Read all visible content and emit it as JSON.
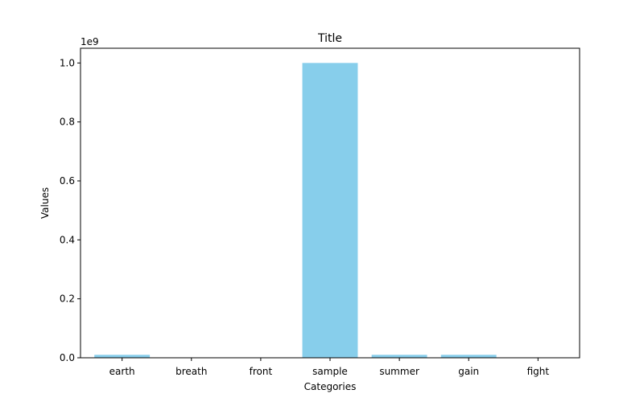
{
  "chart_data": {
    "type": "bar",
    "title": "Title",
    "xlabel": "Categories",
    "ylabel": "Values",
    "categories": [
      "earth",
      "breath",
      "front",
      "sample",
      "summer",
      "gain",
      "fight"
    ],
    "values": [
      10000000,
      0,
      0,
      1000000000,
      10000000,
      10000000,
      0
    ],
    "ylim": [
      0,
      1050000000.0
    ],
    "ytick_values": [
      0,
      200000000.0,
      400000000.0,
      600000000.0,
      800000000.0,
      1000000000.0
    ],
    "ytick_labels": [
      "0.0",
      "0.2",
      "0.4",
      "0.6",
      "0.8",
      "1.0"
    ],
    "offset_label": "1e9",
    "bar_color": "#87CEEB",
    "grid": false,
    "legend": "none"
  }
}
